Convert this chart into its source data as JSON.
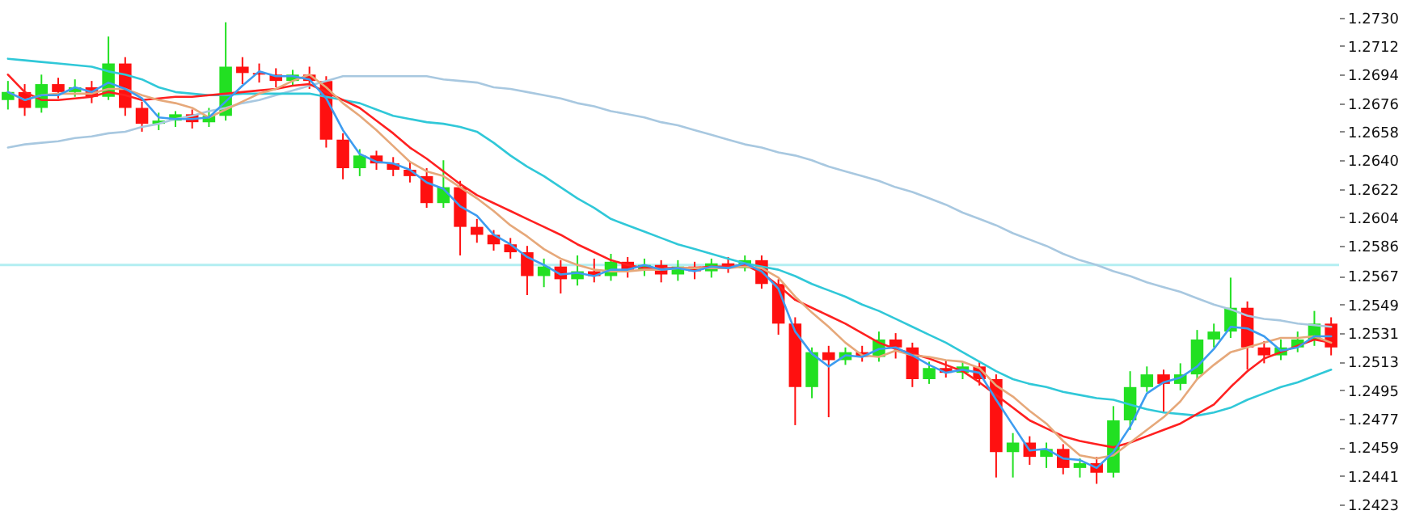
{
  "chart_data": {
    "type": "candlestick",
    "categories": [
      null,
      null,
      null,
      null,
      null,
      null,
      null,
      null,
      null,
      null,
      null,
      null,
      null,
      null,
      null,
      null,
      null,
      null,
      null,
      null,
      null,
      null,
      null,
      null,
      null,
      null,
      null,
      null,
      null,
      null,
      null,
      null,
      null,
      null,
      null,
      null,
      null,
      null,
      null,
      null,
      null,
      null,
      null,
      null,
      null,
      null,
      null,
      null,
      null,
      null,
      null,
      null,
      null,
      null,
      null,
      null,
      null,
      null,
      null,
      null,
      null,
      null,
      null,
      null,
      null,
      null,
      null,
      null,
      null,
      null,
      null,
      null,
      null,
      null,
      null,
      null,
      null,
      null,
      null,
      null
    ],
    "ohlc": [
      [
        1.2678,
        1.269,
        1.2672,
        1.2683
      ],
      [
        1.2683,
        1.2688,
        1.2668,
        1.2673
      ],
      [
        1.2673,
        1.2694,
        1.267,
        1.2688
      ],
      [
        1.2688,
        1.2692,
        1.2679,
        1.2683
      ],
      [
        1.2683,
        1.2691,
        1.268,
        1.2686
      ],
      [
        1.2686,
        1.269,
        1.2676,
        1.268
      ],
      [
        1.268,
        1.2718,
        1.2678,
        1.2701
      ],
      [
        1.2701,
        1.2705,
        1.2668,
        1.2673
      ],
      [
        1.2673,
        1.2677,
        1.2658,
        1.2663
      ],
      [
        1.2663,
        1.267,
        1.2659,
        1.2665
      ],
      [
        1.2665,
        1.2671,
        1.2661,
        1.2669
      ],
      [
        1.2669,
        1.2672,
        1.266,
        1.2664
      ],
      [
        1.2664,
        1.2673,
        1.2661,
        1.2668
      ],
      [
        1.2668,
        1.2727,
        1.2665,
        1.2699
      ],
      [
        1.2699,
        1.2705,
        1.2688,
        1.2695
      ],
      [
        1.2695,
        1.2701,
        1.2689,
        1.2694
      ],
      [
        1.2694,
        1.2698,
        1.2686,
        1.269
      ],
      [
        1.269,
        1.2697,
        1.2687,
        1.2694
      ],
      [
        1.2694,
        1.2699,
        1.2685,
        1.269
      ],
      [
        1.269,
        1.2693,
        1.2648,
        1.2653
      ],
      [
        1.2653,
        1.2657,
        1.2628,
        1.2635
      ],
      [
        1.2635,
        1.2647,
        1.263,
        1.2643
      ],
      [
        1.2643,
        1.2646,
        1.2634,
        1.2638
      ],
      [
        1.2638,
        1.2642,
        1.263,
        1.2634
      ],
      [
        1.2634,
        1.2639,
        1.2626,
        1.263
      ],
      [
        1.263,
        1.2635,
        1.261,
        1.2613
      ],
      [
        1.2613,
        1.264,
        1.261,
        1.2623
      ],
      [
        1.2623,
        1.2627,
        1.258,
        1.2598
      ],
      [
        1.2598,
        1.2603,
        1.2588,
        1.2593
      ],
      [
        1.2593,
        1.2596,
        1.2583,
        1.2587
      ],
      [
        1.2587,
        1.2591,
        1.2578,
        1.2582
      ],
      [
        1.2582,
        1.2586,
        1.2555,
        1.2567
      ],
      [
        1.2567,
        1.2578,
        1.256,
        1.2573
      ],
      [
        1.2573,
        1.2577,
        1.2556,
        1.2565
      ],
      [
        1.2565,
        1.258,
        1.2561,
        1.257
      ],
      [
        1.257,
        1.2578,
        1.2563,
        1.2567
      ],
      [
        1.2567,
        1.2581,
        1.2564,
        1.2576
      ],
      [
        1.2576,
        1.2579,
        1.2566,
        1.2571
      ],
      [
        1.2571,
        1.2578,
        1.2567,
        1.2574
      ],
      [
        1.2574,
        1.2577,
        1.2563,
        1.2568
      ],
      [
        1.2568,
        1.2577,
        1.2564,
        1.2573
      ],
      [
        1.2573,
        1.2576,
        1.2565,
        1.257
      ],
      [
        1.257,
        1.2578,
        1.2566,
        1.2575
      ],
      [
        1.2575,
        1.2579,
        1.2569,
        1.2572
      ],
      [
        1.2572,
        1.258,
        1.257,
        1.2577
      ],
      [
        1.2577,
        1.258,
        1.2559,
        1.2562
      ],
      [
        1.2562,
        1.2565,
        1.253,
        1.2537
      ],
      [
        1.2537,
        1.2541,
        1.2473,
        1.2497
      ],
      [
        1.2497,
        1.2522,
        1.249,
        1.2519
      ],
      [
        1.2519,
        1.2523,
        1.2478,
        1.2514
      ],
      [
        1.2514,
        1.2522,
        1.2511,
        1.2519
      ],
      [
        1.2519,
        1.2523,
        1.2513,
        1.2516
      ],
      [
        1.2516,
        1.2532,
        1.2513,
        1.2527
      ],
      [
        1.2527,
        1.2531,
        1.2515,
        1.2522
      ],
      [
        1.2522,
        1.2525,
        1.2497,
        1.2502
      ],
      [
        1.2502,
        1.2513,
        1.2499,
        1.2509
      ],
      [
        1.2509,
        1.2514,
        1.2503,
        1.2506
      ],
      [
        1.2506,
        1.2513,
        1.2502,
        1.251
      ],
      [
        1.251,
        1.2513,
        1.2498,
        1.2502
      ],
      [
        1.2502,
        1.2505,
        1.244,
        1.2456
      ],
      [
        1.2456,
        1.2468,
        1.244,
        1.2462
      ],
      [
        1.2462,
        1.2466,
        1.2448,
        1.2453
      ],
      [
        1.2453,
        1.2462,
        1.2446,
        1.2458
      ],
      [
        1.2458,
        1.2461,
        1.2442,
        1.2446
      ],
      [
        1.2446,
        1.2452,
        1.244,
        1.2449
      ],
      [
        1.2449,
        1.2453,
        1.2436,
        1.2443
      ],
      [
        1.2443,
        1.2485,
        1.244,
        1.2476
      ],
      [
        1.2476,
        1.2507,
        1.247,
        1.2497
      ],
      [
        1.2497,
        1.251,
        1.2494,
        1.2505
      ],
      [
        1.2505,
        1.2508,
        1.2481,
        1.2499
      ],
      [
        1.2499,
        1.2512,
        1.2495,
        1.2505
      ],
      [
        1.2505,
        1.2533,
        1.2502,
        1.2527
      ],
      [
        1.2527,
        1.2537,
        1.2522,
        1.2532
      ],
      [
        1.2532,
        1.2566,
        1.2528,
        1.2547
      ],
      [
        1.2547,
        1.2551,
        1.2508,
        1.2522
      ],
      [
        1.2522,
        1.2526,
        1.2512,
        1.2517
      ],
      [
        1.2517,
        1.2527,
        1.2514,
        1.2522
      ],
      [
        1.2522,
        1.2532,
        1.2519,
        1.2527
      ],
      [
        1.2527,
        1.2545,
        1.2523,
        1.2537
      ],
      [
        1.2537,
        1.2541,
        1.2517,
        1.2522
      ]
    ],
    "colors": [
      "#22e022",
      "#ff1010",
      "#22e022",
      "#ff1010",
      "#22e022",
      "#ff1010",
      "#22e022",
      "#ff1010",
      "#ff1010",
      "#22e022",
      "#22e022",
      "#ff1010",
      "#22e022",
      "#22e022",
      "#ff1010",
      "#ff1010",
      "#ff1010",
      "#22e022",
      "#ff1010",
      "#ff1010",
      "#ff1010",
      "#22e022",
      "#ff1010",
      "#ff1010",
      "#ff1010",
      "#ff1010",
      "#22e022",
      "#ff1010",
      "#ff1010",
      "#ff1010",
      "#ff1010",
      "#ff1010",
      "#22e022",
      "#ff1010",
      "#22e022",
      "#ff1010",
      "#22e022",
      "#ff1010",
      "#22e022",
      "#ff1010",
      "#22e022",
      "#ff1010",
      "#22e022",
      "#ff1010",
      "#22e022",
      "#ff1010",
      "#ff1010",
      "#ff1010",
      "#22e022",
      "#ff1010",
      "#22e022",
      "#ff1010",
      "#22e022",
      "#ff1010",
      "#ff1010",
      "#22e022",
      "#ff1010",
      "#22e022",
      "#ff1010",
      "#ff1010",
      "#22e022",
      "#ff1010",
      "#22e022",
      "#ff1010",
      "#22e022",
      "#ff1010",
      "#22e022",
      "#22e022",
      "#22e022",
      "#ff1010",
      "#22e022",
      "#22e022",
      "#22e022",
      "#22e022",
      "#ff1010",
      "#ff1010",
      "#22e022",
      "#22e022",
      "#22e022",
      "#ff1010"
    ],
    "series": [
      {
        "type": "line",
        "color": "#a8c8e0",
        "values": [
          1.2648,
          1.265,
          1.2651,
          1.2652,
          1.2654,
          1.2655,
          1.2657,
          1.2658,
          1.2661,
          1.2663,
          1.2666,
          1.2668,
          1.2671,
          1.2673,
          1.2676,
          1.2678,
          1.2681,
          1.2684,
          1.2687,
          1.269,
          1.2693,
          1.2693,
          1.2693,
          1.2693,
          1.2693,
          1.2693,
          1.2691,
          1.269,
          1.2689,
          1.2686,
          1.2685,
          1.2683,
          1.2681,
          1.2679,
          1.2676,
          1.2674,
          1.2671,
          1.2669,
          1.2667,
          1.2664,
          1.2662,
          1.2659,
          1.2656,
          1.2653,
          1.265,
          1.2648,
          1.2645,
          1.2643,
          1.264,
          1.2636,
          1.2633,
          1.263,
          1.2627,
          1.2623,
          1.262,
          1.2616,
          1.2612,
          1.2607,
          1.2603,
          1.2599,
          1.2594,
          1.259,
          1.2586,
          1.2581,
          1.2577,
          1.2574,
          1.257,
          1.2567,
          1.2563,
          1.256,
          1.2557,
          1.2553,
          1.2549,
          1.2546,
          1.2542,
          1.254,
          1.2539,
          1.2537,
          1.2536,
          1.2535
        ]
      },
      {
        "type": "line",
        "color": "#30c8d8",
        "values": [
          1.2704,
          1.2703,
          1.2702,
          1.2701,
          1.27,
          1.2699,
          1.2696,
          1.2694,
          1.2691,
          1.2686,
          1.2683,
          1.2682,
          1.2681,
          1.2681,
          1.2682,
          1.2682,
          1.2682,
          1.2682,
          1.2682,
          1.268,
          1.2678,
          1.2676,
          1.2672,
          1.2668,
          1.2666,
          1.2664,
          1.2663,
          1.2661,
          1.2658,
          1.2651,
          1.2643,
          1.2636,
          1.263,
          1.2623,
          1.2616,
          1.261,
          1.2603,
          1.2599,
          1.2595,
          1.2591,
          1.2587,
          1.2584,
          1.2581,
          1.2578,
          1.2575,
          1.2573,
          1.2571,
          1.2567,
          1.2562,
          1.2558,
          1.2554,
          1.2549,
          1.2545,
          1.254,
          1.2535,
          1.253,
          1.2525,
          1.2519,
          1.2513,
          1.2507,
          1.2502,
          1.2499,
          1.2497,
          1.2494,
          1.2492,
          1.249,
          1.2489,
          1.2486,
          1.2483,
          1.2481,
          1.248,
          1.2479,
          1.2481,
          1.2484,
          1.2489,
          1.2493,
          1.2497,
          1.25,
          1.2504,
          1.2508
        ]
      },
      {
        "type": "line",
        "color": "#ff2020",
        "values": [
          1.2694,
          1.2683,
          1.2678,
          1.2678,
          1.2679,
          1.268,
          1.2683,
          1.2681,
          1.2678,
          1.2679,
          1.268,
          1.268,
          1.2681,
          1.2682,
          1.2683,
          1.2684,
          1.2685,
          1.2687,
          1.2688,
          1.2683,
          1.2678,
          1.2673,
          1.2665,
          1.2657,
          1.2648,
          1.2641,
          1.2633,
          1.2625,
          1.2618,
          1.2613,
          1.2608,
          1.2603,
          1.2598,
          1.2593,
          1.2587,
          1.2582,
          1.2577,
          1.2574,
          1.2572,
          1.2572,
          1.2572,
          1.2572,
          1.2573,
          1.2573,
          1.2574,
          1.2569,
          1.2561,
          1.2552,
          1.2547,
          1.2542,
          1.2537,
          1.2531,
          1.2525,
          1.2521,
          1.2518,
          1.2515,
          1.2511,
          1.2507,
          1.25,
          1.2492,
          1.2484,
          1.2476,
          1.2471,
          1.2466,
          1.2463,
          1.2461,
          1.2459,
          1.2462,
          1.2466,
          1.247,
          1.2474,
          1.248,
          1.2486,
          1.2497,
          1.2507,
          1.2515,
          1.2519,
          1.2523,
          1.2527,
          1.2525
        ]
      },
      {
        "type": "line",
        "color": "#e6a87a",
        "values": [
          1.2683,
          1.2678,
          1.2681,
          1.2682,
          1.2682,
          1.2682,
          1.2685,
          1.2685,
          1.2681,
          1.2678,
          1.2676,
          1.2673,
          1.2667,
          1.2672,
          1.2677,
          1.2682,
          1.2685,
          1.269,
          1.2694,
          1.2686,
          1.2676,
          1.2668,
          1.2659,
          1.2649,
          1.2639,
          1.2633,
          1.263,
          1.2623,
          1.2616,
          1.2608,
          1.2599,
          1.2592,
          1.2584,
          1.2578,
          1.2574,
          1.2571,
          1.257,
          1.257,
          1.2571,
          1.2571,
          1.2572,
          1.2572,
          1.2572,
          1.2572,
          1.2573,
          1.2572,
          1.2566,
          1.2554,
          1.2544,
          1.2535,
          1.2525,
          1.2517,
          1.2516,
          1.252,
          1.2517,
          1.2516,
          1.2514,
          1.2513,
          1.2509,
          1.2498,
          1.2491,
          1.2482,
          1.2474,
          1.2463,
          1.2454,
          1.2452,
          1.2454,
          1.2462,
          1.247,
          1.2478,
          1.2488,
          1.2502,
          1.2511,
          1.2519,
          1.2522,
          1.2525,
          1.2528,
          1.2528,
          1.2529,
          1.2525
        ]
      },
      {
        "type": "line",
        "color": "#3d9cf0",
        "values": [
          1.2683,
          1.2678,
          1.2681,
          1.2681,
          1.2686,
          1.2683,
          1.2689,
          1.2685,
          1.2679,
          1.2667,
          1.2666,
          1.2666,
          1.2667,
          1.2677,
          1.2687,
          1.2696,
          1.2693,
          1.2693,
          1.2691,
          1.2679,
          1.2659,
          1.2644,
          1.2639,
          1.2638,
          1.2634,
          1.2626,
          1.2622,
          1.2611,
          1.2605,
          1.2593,
          1.2587,
          1.2579,
          1.2574,
          1.2568,
          1.2569,
          1.2567,
          1.2571,
          1.2571,
          1.2574,
          1.2571,
          1.2572,
          1.257,
          1.2573,
          1.2572,
          1.2575,
          1.257,
          1.2559,
          1.2532,
          1.2518,
          1.251,
          1.2517,
          1.2516,
          1.2521,
          1.2522,
          1.2517,
          1.2511,
          1.2506,
          1.2508,
          1.2506,
          1.2489,
          1.2473,
          1.2457,
          1.2458,
          1.2452,
          1.2451,
          1.2446,
          1.2456,
          1.2472,
          1.2493,
          1.25,
          1.2503,
          1.251,
          1.2521,
          1.2535,
          1.2534,
          1.2529,
          1.252,
          1.2522,
          1.2529,
          1.2529
        ]
      }
    ],
    "ylim": [
      1.2423,
      1.2739
    ],
    "yticks": [
      {
        "value": 1.273,
        "label": "1.2730"
      },
      1.2712,
      1.2694,
      1.2676,
      1.2658,
      {
        "value": 1.264,
        "label": "1.2640"
      },
      1.2622,
      1.2604,
      1.2586,
      1.2567,
      1.2549,
      1.2531,
      1.2513,
      1.2495,
      1.2477,
      1.2459,
      1.2441,
      1.2423
    ],
    "ref_lines": [
      {
        "axis": "y",
        "value": 1.2574,
        "color": "#b3eef2"
      }
    ],
    "tick_labels": "y"
  }
}
